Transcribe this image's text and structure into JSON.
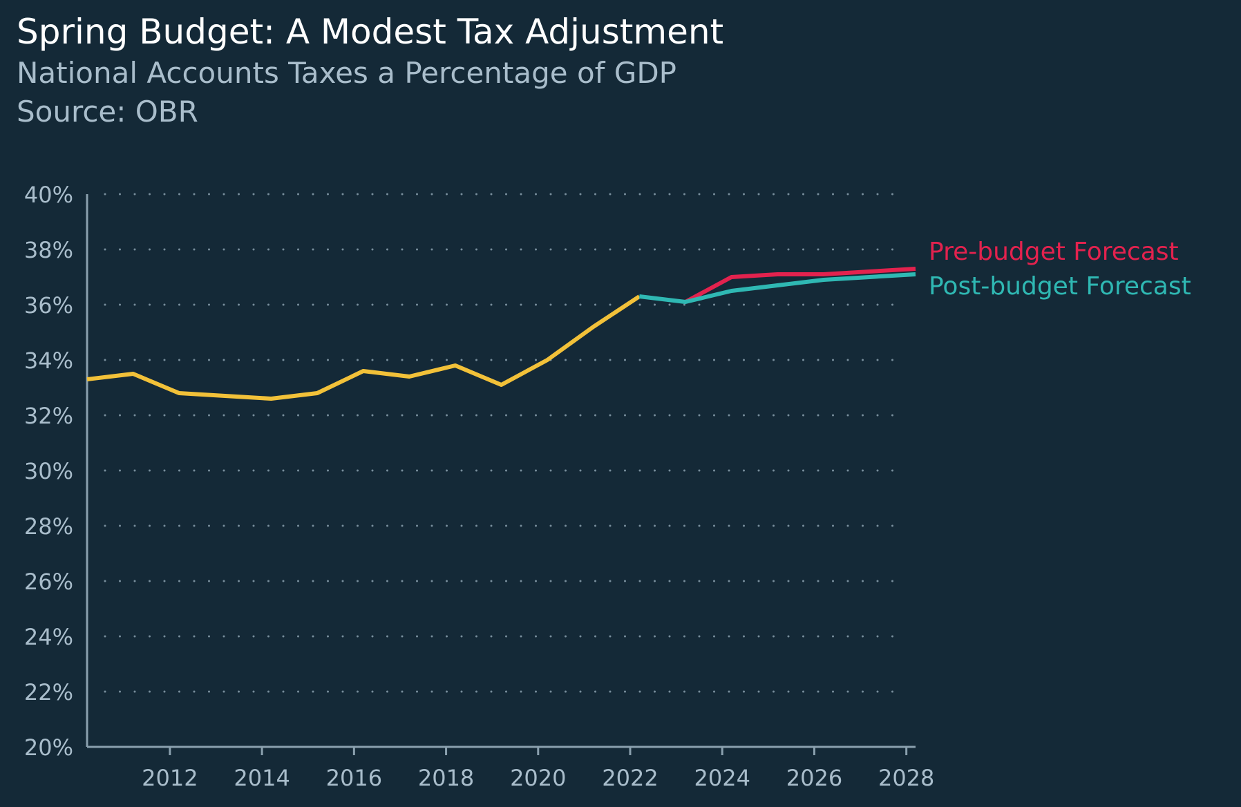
{
  "header": {
    "title": "Spring Budget: A Modest Tax Adjustment",
    "subtitle": "National Accounts Taxes a Percentage of GDP",
    "source": "Source: OBR"
  },
  "colors": {
    "background": "#142937",
    "historical": "#f2c139",
    "pre_budget": "#e3224e",
    "post_budget": "#2fb8b3",
    "axis": "#8aa0ae",
    "grid": "#8aa0ae"
  },
  "chart_data": {
    "type": "line",
    "title": "Spring Budget: A Modest Tax Adjustment",
    "subtitle": "National Accounts Taxes a Percentage of GDP",
    "xlabel": "",
    "ylabel": "",
    "xlim": [
      2010.2,
      2028.2
    ],
    "ylim": [
      20,
      40
    ],
    "x_ticks": [
      2012,
      2014,
      2016,
      2018,
      2020,
      2022,
      2024,
      2026,
      2028
    ],
    "x_tick_labels": [
      "2012",
      "2014",
      "2016",
      "2018",
      "2020",
      "2022",
      "2024",
      "2026",
      "2028"
    ],
    "y_ticks": [
      20,
      22,
      24,
      26,
      28,
      30,
      32,
      34,
      36,
      38,
      40
    ],
    "y_tick_labels": [
      "20%",
      "22%",
      "24%",
      "26%",
      "28%",
      "30%",
      "32%",
      "34%",
      "36%",
      "38%",
      "40%"
    ],
    "grid": "horizontal dotted",
    "legend": "direct labels at right end of lines",
    "series": [
      {
        "key": "historical",
        "color": "#f2c139",
        "x": [
          2010.2,
          2011.2,
          2012.2,
          2013.2,
          2014.2,
          2015.2,
          2016.2,
          2017.2,
          2018.2,
          2019.2,
          2020.2,
          2021.2,
          2022.2
        ],
        "y": [
          33.3,
          33.5,
          32.8,
          32.7,
          32.6,
          32.8,
          33.6,
          33.4,
          33.8,
          33.1,
          34.0,
          35.2,
          36.3
        ]
      },
      {
        "key": "pre_budget",
        "name": "Pre-budget Forecast",
        "color": "#e3224e",
        "x": [
          2023.2,
          2024.2,
          2025.2,
          2026.2,
          2027.2,
          2028.2
        ],
        "y": [
          36.1,
          37.0,
          37.1,
          37.1,
          37.2,
          37.3
        ]
      },
      {
        "key": "post_budget",
        "name": "Post-budget Forecast",
        "color": "#2fb8b3",
        "x": [
          2022.2,
          2023.2,
          2024.2,
          2025.2,
          2026.2,
          2027.2,
          2028.2
        ],
        "y": [
          36.3,
          36.1,
          36.5,
          36.7,
          36.9,
          37.0,
          37.1
        ]
      }
    ]
  }
}
